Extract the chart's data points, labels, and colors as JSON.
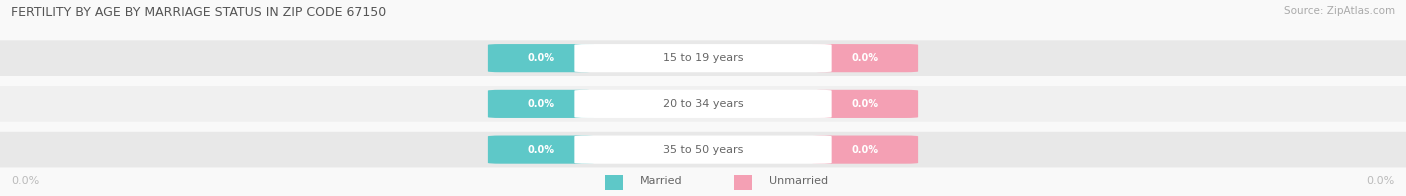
{
  "title": "FERTILITY BY AGE BY MARRIAGE STATUS IN ZIP CODE 67150",
  "source": "Source: ZipAtlas.com",
  "categories": [
    "15 to 19 years",
    "20 to 34 years",
    "35 to 50 years"
  ],
  "married_values": [
    0.0,
    0.0,
    0.0
  ],
  "unmarried_values": [
    0.0,
    0.0,
    0.0
  ],
  "married_color": "#5ec8c8",
  "unmarried_color": "#f4a0b4",
  "row_bg_color": "#e8e8e8",
  "row_bg_color2": "#f0f0f0",
  "label_text_color": "#ffffff",
  "category_text_color": "#666666",
  "title_color": "#555555",
  "source_color": "#aaaaaa",
  "axis_label_color": "#bbbbbb",
  "legend_text_color": "#666666",
  "background_color": "#f9f9f9",
  "figsize": [
    14.06,
    1.96
  ],
  "dpi": 100
}
